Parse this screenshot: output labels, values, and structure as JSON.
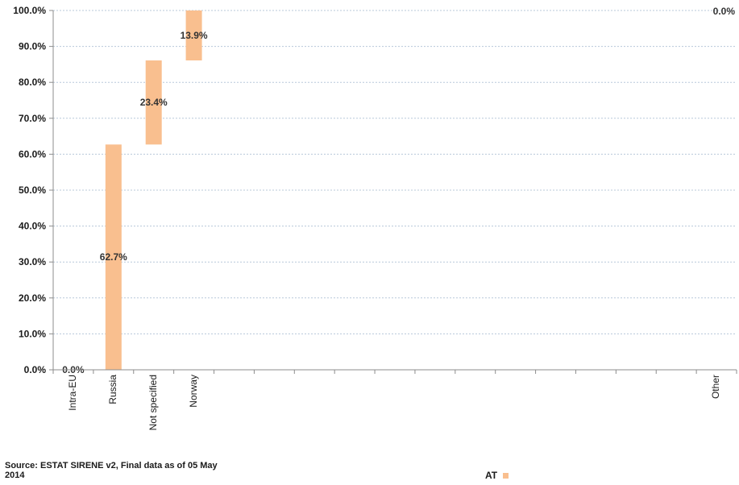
{
  "chart_data": {
    "type": "bar",
    "subtype": "waterfall",
    "categories": [
      "Intra-EU",
      "Russia",
      "Not specified",
      "Norway",
      "",
      "",
      "",
      "",
      "",
      "",
      "",
      "",
      "",
      "",
      "",
      "",
      "Other"
    ],
    "series": [
      {
        "name": "AT",
        "color": "#f9bf8f",
        "values": [
          0.0,
          62.7,
          23.4,
          13.9,
          0,
          0,
          0,
          0,
          0,
          0,
          0,
          0,
          0,
          0,
          0,
          0,
          0.0
        ]
      }
    ],
    "data_labels": [
      "0.0%",
      "62.7%",
      "23.4%",
      "13.9%",
      "",
      "",
      "",
      "",
      "",
      "",
      "",
      "",
      "",
      "",
      "",
      "",
      "0.0%"
    ],
    "yticks": [
      "0.0%",
      "10.0%",
      "20.0%",
      "30.0%",
      "40.0%",
      "50.0%",
      "60.0%",
      "70.0%",
      "80.0%",
      "90.0%",
      "100.0%"
    ],
    "ylim": [
      0,
      100
    ],
    "grid": true,
    "legend_position": "bottom-center"
  },
  "source_note": "Source: ESTAT SIRENE v2, Final data as of 05 May 2014",
  "legend": {
    "label": "AT"
  },
  "colors": {
    "bar": "#f9bf8f",
    "grid": "#b8c8da",
    "axis": "#8c8c8c"
  }
}
